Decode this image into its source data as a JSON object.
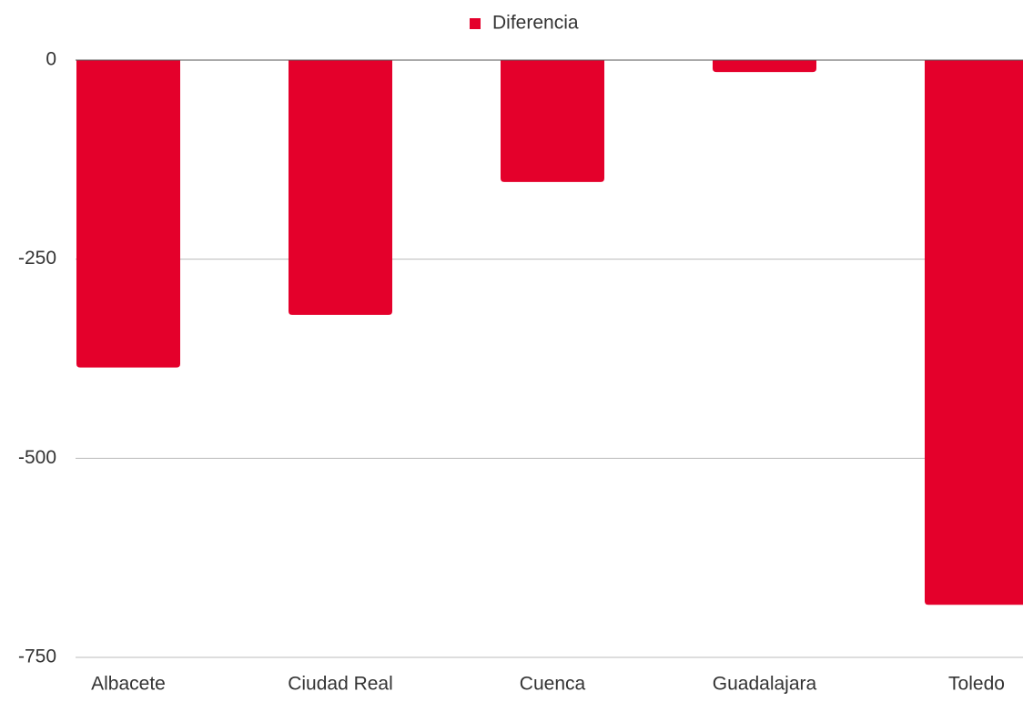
{
  "chart_data": {
    "type": "bar",
    "categories": [
      "Albacete",
      "Ciudad Real",
      "Cuenca",
      "Guadalajara",
      "Toledo"
    ],
    "series": [
      {
        "name": "Diferencia",
        "color": "#e4002b",
        "values": [
          -386,
          -320,
          -153,
          -15,
          -684
        ]
      }
    ],
    "ylim": [
      -750,
      0
    ],
    "yticks": [
      0,
      -250,
      -500,
      -750
    ],
    "grid": true,
    "legend": "top"
  }
}
